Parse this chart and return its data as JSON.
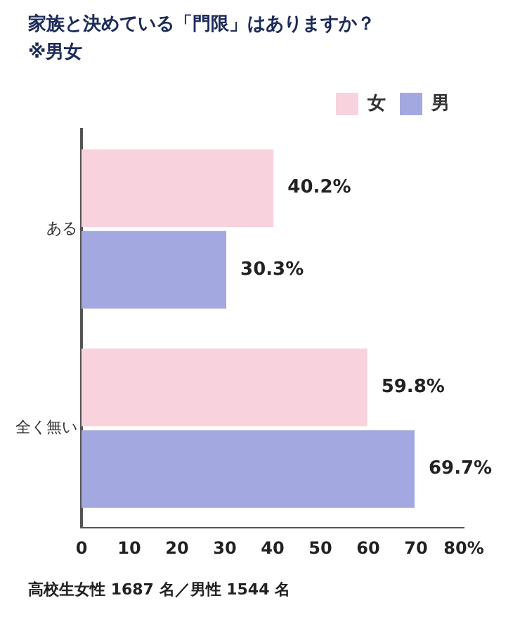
{
  "chart_data": {
    "type": "bar",
    "orientation": "horizontal",
    "title": "家族と決めている「門限」はありますか？",
    "subtitle": "※男女",
    "categories": [
      "ある",
      "全く無い"
    ],
    "series": [
      {
        "name": "女",
        "color": "#f8d3de",
        "values": [
          40.2,
          59.8
        ],
        "value_labels": [
          "40.2%",
          "59.8%"
        ]
      },
      {
        "name": "男",
        "color": "#a4a8e0",
        "values": [
          30.3,
          69.7
        ],
        "value_labels": [
          "30.3%",
          "69.7%"
        ]
      }
    ],
    "xlim": [
      0,
      80
    ],
    "xticks": [
      0,
      10,
      20,
      30,
      40,
      50,
      60,
      70,
      {
        "value": 80,
        "label": "80%"
      }
    ],
    "grid": false,
    "legend": "top right",
    "annotations": [
      "高校生女性 1687 名／男性 1544 名"
    ]
  }
}
